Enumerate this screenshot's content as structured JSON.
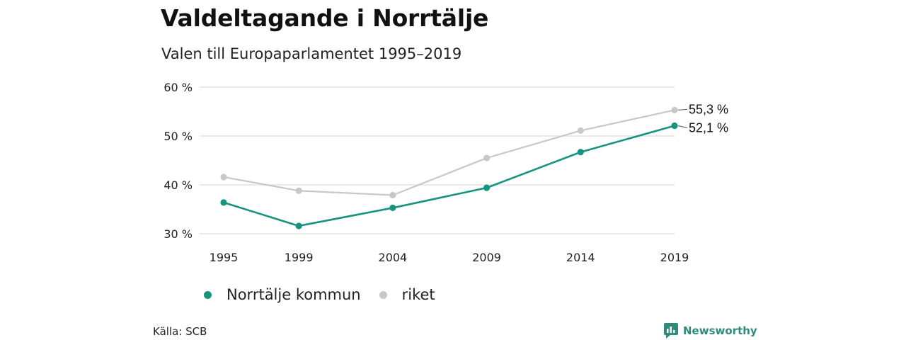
{
  "title": "Valdeltagande i Norrtälje",
  "subtitle": "Valen till Europaparlamentet 1995–2019",
  "source": "Källa: SCB",
  "brand": "Newsworthy",
  "colors": {
    "norrtalje": "#17937f",
    "riket": "#c8c8c8",
    "grid": "#dddddd",
    "brand": "#2e8b7a"
  },
  "chart_data": {
    "type": "line",
    "x": [
      1995,
      1999,
      2004,
      2009,
      2014,
      2019
    ],
    "ylim": [
      30,
      60
    ],
    "yticks": [
      30,
      40,
      50,
      60
    ],
    "ytick_labels": [
      "30 %",
      "40 %",
      "50 %",
      "60 %"
    ],
    "series": [
      {
        "name": "Norrtälje kommun",
        "color": "#17937f",
        "values": [
          36.4,
          31.6,
          35.3,
          39.4,
          46.7,
          52.1
        ],
        "end_label": "52,1 %"
      },
      {
        "name": "riket",
        "color": "#c8c8c8",
        "values": [
          41.6,
          38.8,
          37.9,
          45.5,
          51.1,
          55.3
        ],
        "end_label": "55,3 %"
      }
    ],
    "legend_position": "bottom-left",
    "grid": true
  }
}
